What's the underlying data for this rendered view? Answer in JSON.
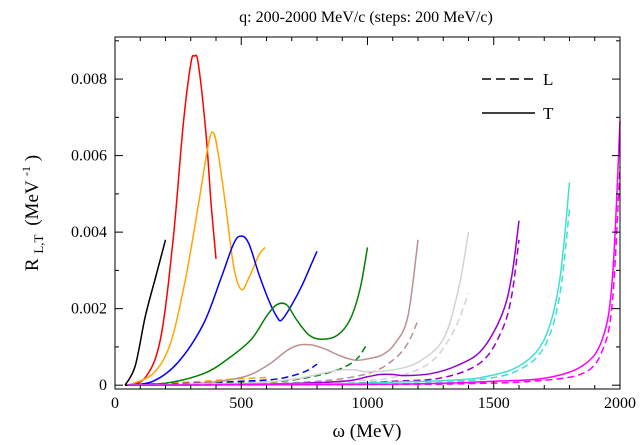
{
  "chart_data": {
    "type": "line",
    "title": "q: 200-2000 MeV/c (steps: 200 MeV/c)",
    "xlabel": "ω (MeV)",
    "ylabel_main": "R",
    "ylabel_sub": "L,T",
    "ylabel_unit": "(MeV",
    "ylabel_exp": "-1",
    "ylabel_close": ")",
    "xlim": [
      0,
      2000
    ],
    "ylim": [
      -0.0001,
      0.0091
    ],
    "xticks": [
      0,
      500,
      1000,
      1500,
      2000
    ],
    "xtick_labels": [
      "0",
      "500",
      "1000",
      "1500",
      "2000"
    ],
    "yticks": [
      0,
      0.002,
      0.004,
      0.006,
      0.008
    ],
    "ytick_labels": [
      "0",
      "0.002",
      "0.004",
      "0.006",
      "0.008"
    ],
    "grid": false,
    "legend_position": "top-right",
    "legend": [
      {
        "label": "L",
        "style": "dashed"
      },
      {
        "label": "T",
        "style": "solid"
      }
    ],
    "series": [
      {
        "q": 200,
        "color": "#000000",
        "T": [
          [
            40,
            0
          ],
          [
            80,
            0.0005
          ],
          [
            120,
            0.0018
          ],
          [
            160,
            0.0028
          ],
          [
            200,
            0.0038
          ]
        ],
        "L": [
          [
            40,
            0
          ],
          [
            120,
            2e-05
          ],
          [
            200,
            4e-05
          ]
        ]
      },
      {
        "q": 400,
        "color": "#ff0000",
        "T": [
          [
            50,
            0
          ],
          [
            120,
            0.0002
          ],
          [
            180,
            0.0012
          ],
          [
            230,
            0.0038
          ],
          [
            270,
            0.0068
          ],
          [
            300,
            0.0084
          ],
          [
            315,
            0.0086
          ],
          [
            330,
            0.0084
          ],
          [
            360,
            0.0066
          ],
          [
            380,
            0.0048
          ],
          [
            400,
            0.0033
          ]
        ],
        "L": [
          [
            50,
            0
          ],
          [
            200,
            5e-05
          ],
          [
            400,
            0.0001
          ]
        ]
      },
      {
        "q": 600,
        "color": "#ffa500",
        "T": [
          [
            50,
            0
          ],
          [
            150,
            0.0003
          ],
          [
            220,
            0.0011
          ],
          [
            280,
            0.0028
          ],
          [
            330,
            0.0047
          ],
          [
            370,
            0.0063
          ],
          [
            390,
            0.0066
          ],
          [
            410,
            0.006
          ],
          [
            440,
            0.0046
          ],
          [
            470,
            0.0031
          ],
          [
            500,
            0.0025
          ],
          [
            530,
            0.0028
          ],
          [
            570,
            0.0034
          ],
          [
            595,
            0.0036
          ]
        ],
        "L": [
          [
            50,
            0
          ],
          [
            300,
            8e-05
          ],
          [
            450,
            0.00015
          ],
          [
            600,
            0.0002
          ]
        ]
      },
      {
        "q": 800,
        "color": "#0000ff",
        "T": [
          [
            50,
            0
          ],
          [
            150,
            0.0001
          ],
          [
            250,
            0.0006
          ],
          [
            350,
            0.0016
          ],
          [
            420,
            0.0028
          ],
          [
            470,
            0.0037
          ],
          [
            500,
            0.0039
          ],
          [
            530,
            0.0037
          ],
          [
            570,
            0.0029
          ],
          [
            610,
            0.0022
          ],
          [
            640,
            0.0018
          ],
          [
            660,
            0.0017
          ],
          [
            700,
            0.0021
          ],
          [
            740,
            0.0026
          ],
          [
            780,
            0.0032
          ],
          [
            800,
            0.0035
          ]
        ],
        "L": [
          [
            50,
            0
          ],
          [
            300,
            5e-05
          ],
          [
            500,
            0.0001
          ],
          [
            650,
            0.00017
          ],
          [
            750,
            0.00035
          ],
          [
            800,
            0.00055
          ]
        ]
      },
      {
        "q": 1000,
        "color": "#008000",
        "T": [
          [
            50,
            0
          ],
          [
            200,
            5e-05
          ],
          [
            350,
            0.0003
          ],
          [
            450,
            0.0007
          ],
          [
            540,
            0.0012
          ],
          [
            600,
            0.0018
          ],
          [
            640,
            0.0021
          ],
          [
            680,
            0.0021
          ],
          [
            720,
            0.0017
          ],
          [
            770,
            0.0013
          ],
          [
            820,
            0.0012
          ],
          [
            880,
            0.0013
          ],
          [
            930,
            0.0017
          ],
          [
            970,
            0.0025
          ],
          [
            1000,
            0.0036
          ]
        ],
        "L": [
          [
            50,
            0
          ],
          [
            400,
            5e-05
          ],
          [
            650,
            0.0001
          ],
          [
            800,
            0.00025
          ],
          [
            900,
            0.00045
          ],
          [
            960,
            0.0007
          ],
          [
            1000,
            0.0011
          ]
        ]
      },
      {
        "q": 1200,
        "color": "#bc8f8f",
        "T": [
          [
            50,
            0
          ],
          [
            300,
            3e-05
          ],
          [
            500,
            0.0002
          ],
          [
            600,
            0.0005
          ],
          [
            680,
            0.0009
          ],
          [
            730,
            0.00105
          ],
          [
            780,
            0.00105
          ],
          [
            830,
            0.00095
          ],
          [
            880,
            0.0008
          ],
          [
            920,
            0.0007
          ],
          [
            960,
            0.00065
          ],
          [
            1010,
            0.0007
          ],
          [
            1060,
            0.0008
          ],
          [
            1110,
            0.0011
          ],
          [
            1160,
            0.0018
          ],
          [
            1200,
            0.0038
          ]
        ],
        "L": [
          [
            50,
            0
          ],
          [
            500,
            3e-05
          ],
          [
            800,
            0.0001
          ],
          [
            1000,
            0.0003
          ],
          [
            1100,
            0.00065
          ],
          [
            1160,
            0.0011
          ],
          [
            1200,
            0.0017
          ]
        ]
      },
      {
        "q": 1400,
        "color": "#d3d3d3",
        "T": [
          [
            50,
            0
          ],
          [
            500,
            5e-05
          ],
          [
            700,
            0.00015
          ],
          [
            850,
            0.00035
          ],
          [
            900,
            0.0004
          ],
          [
            950,
            0.0004
          ],
          [
            1000,
            0.00035
          ],
          [
            1100,
            0.0004
          ],
          [
            1200,
            0.0006
          ],
          [
            1300,
            0.0012
          ],
          [
            1360,
            0.0025
          ],
          [
            1400,
            0.004
          ]
        ],
        "L": [
          [
            50,
            0
          ],
          [
            600,
            3e-05
          ],
          [
            900,
            0.0001
          ],
          [
            1100,
            0.0002
          ],
          [
            1250,
            0.0006
          ],
          [
            1340,
            0.0014
          ],
          [
            1400,
            0.0024
          ]
        ]
      },
      {
        "q": 1600,
        "color": "#9400d3",
        "T": [
          [
            50,
            0
          ],
          [
            600,
            3e-05
          ],
          [
            900,
            0.0001
          ],
          [
            1000,
            0.00022
          ],
          [
            1050,
            0.00028
          ],
          [
            1100,
            0.00028
          ],
          [
            1150,
            0.00025
          ],
          [
            1250,
            0.0003
          ],
          [
            1350,
            0.0005
          ],
          [
            1450,
            0.0009
          ],
          [
            1530,
            0.0018
          ],
          [
            1570,
            0.0028
          ],
          [
            1600,
            0.0043
          ]
        ],
        "L": [
          [
            50,
            0
          ],
          [
            800,
            3e-05
          ],
          [
            1100,
            0.0001
          ],
          [
            1300,
            0.0002
          ],
          [
            1450,
            0.0006
          ],
          [
            1530,
            0.0014
          ],
          [
            1570,
            0.0023
          ],
          [
            1600,
            0.0038
          ]
        ]
      },
      {
        "q": 1800,
        "color": "#40e0d0",
        "T": [
          [
            50,
            0
          ],
          [
            800,
            3e-05
          ],
          [
            1100,
            8e-05
          ],
          [
            1300,
            0.00012
          ],
          [
            1450,
            0.0002
          ],
          [
            1600,
            0.0005
          ],
          [
            1700,
            0.0012
          ],
          [
            1760,
            0.0027
          ],
          [
            1800,
            0.0053
          ]
        ],
        "L": [
          [
            50,
            0
          ],
          [
            900,
            2e-05
          ],
          [
            1200,
            5e-05
          ],
          [
            1450,
            0.00015
          ],
          [
            1600,
            0.0004
          ],
          [
            1700,
            0.001
          ],
          [
            1760,
            0.0023
          ],
          [
            1800,
            0.0046
          ]
        ]
      },
      {
        "q": 2000,
        "color": "#ff00ff",
        "T": [
          [
            50,
            0
          ],
          [
            1000,
            2e-05
          ],
          [
            1300,
            5e-05
          ],
          [
            1500,
            0.0001
          ],
          [
            1700,
            0.00018
          ],
          [
            1850,
            0.0005
          ],
          [
            1930,
            0.0012
          ],
          [
            1970,
            0.0028
          ],
          [
            2000,
            0.0069
          ]
        ],
        "L": [
          [
            50,
            0
          ],
          [
            1100,
            2e-05
          ],
          [
            1400,
            4e-05
          ],
          [
            1650,
            0.0001
          ],
          [
            1850,
            0.0003
          ],
          [
            1930,
            0.0009
          ],
          [
            1970,
            0.0022
          ],
          [
            2000,
            0.0057
          ]
        ]
      }
    ]
  }
}
